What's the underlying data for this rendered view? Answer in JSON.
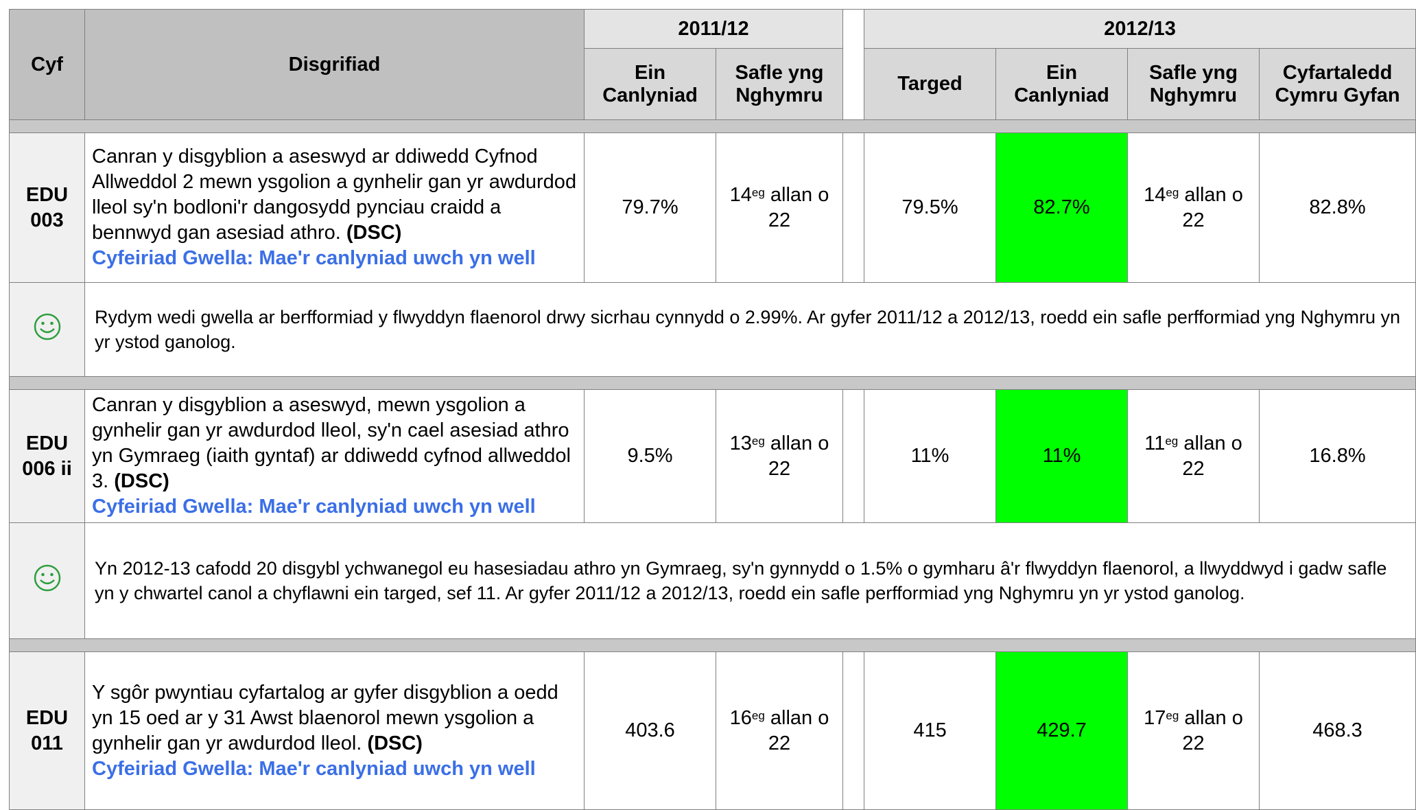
{
  "table": {
    "headers": {
      "ref": "Cyf",
      "description": "Disgrifiad",
      "years": [
        {
          "label": "2011/12",
          "columns": [
            "Ein Canlyniad",
            "Safle yng Nghymru"
          ]
        },
        {
          "label": "2012/13",
          "columns": [
            "Targed",
            "Ein Canlyniad",
            "Safle yng Nghymru",
            "Cyfartaledd Cymru Gyfan"
          ]
        }
      ]
    },
    "rows": [
      {
        "ref": "EDU 003",
        "description": "Canran y disgyblion a aseswyd ar ddiwedd Cyfnod Allweddol 2 mewn ysgolion a gynhelir gan yr awdurdod lleol sy'n bodloni'r dangosydd pynciau craidd a bennwyd gan asesiad athro.",
        "source": "(DSC)",
        "improvement": "Cyfeiriad Gwella: Mae'r canlyniad uwch yn well",
        "result_2011": "79.7%",
        "rank_2011": {
          "position": "14",
          "suffix": "eg",
          "text": "allan o 22"
        },
        "target_2012": "79.5%",
        "result_2012": "82.7%",
        "rank_2012": {
          "position": "14",
          "suffix": "eg",
          "text": "allan o 22"
        },
        "wales_average": "82.8%",
        "comment": "Rydym wedi gwella ar berfformiad y flwyddyn flaenorol drwy sicrhau cynnydd o 2.99%.  Ar gyfer 2011/12 a 2012/13, roedd ein safle perfformiad yng Nghymru yn yr ystod ganolog."
      },
      {
        "ref": "EDU 006 ii",
        "description": "Canran y disgyblion a aseswyd, mewn ysgolion a gynhelir gan yr awdurdod lleol, sy'n cael asesiad athro yn Gymraeg (iaith gyntaf) ar ddiwedd cyfnod allweddol 3.",
        "source": "(DSC)",
        "improvement": "Cyfeiriad Gwella: Mae'r canlyniad uwch yn well",
        "result_2011": "9.5%",
        "rank_2011": {
          "position": "13",
          "suffix": "eg",
          "text": "allan o 22"
        },
        "target_2012": "11%",
        "result_2012": "11%",
        "rank_2012": {
          "position": "11",
          "suffix": "eg",
          "text": "allan o 22"
        },
        "wales_average": "16.8%",
        "comment": "Yn 2012-13 cafodd 20 disgybl ychwanegol eu hasesiadau athro yn Gymraeg, sy'n gynnydd o 1.5% o gymharu â'r flwyddyn flaenorol, a llwyddwyd i gadw safle yn y chwartel canol a chyflawni ein targed, sef 11.  Ar gyfer 2011/12 a 2012/13, roedd ein safle perfformiad yng Nghymru yn yr ystod ganolog."
      },
      {
        "ref": "EDU 011",
        "description": "Y sgôr pwyntiau cyfartalog ar gyfer disgyblion a oedd yn 15 oed ar y 31 Awst blaenorol mewn ysgolion a gynhelir gan yr awdurdod lleol.",
        "source": "(DSC)",
        "improvement": "Cyfeiriad Gwella: Mae'r canlyniad uwch yn well",
        "result_2011": "403.6",
        "rank_2011": {
          "position": "16",
          "suffix": "eg",
          "text": "allan o 22"
        },
        "target_2012": "415",
        "result_2012": "429.7",
        "rank_2012": {
          "position": "17",
          "suffix": "eg",
          "text": "allan o 22"
        },
        "wales_average": "468.3"
      }
    ]
  }
}
